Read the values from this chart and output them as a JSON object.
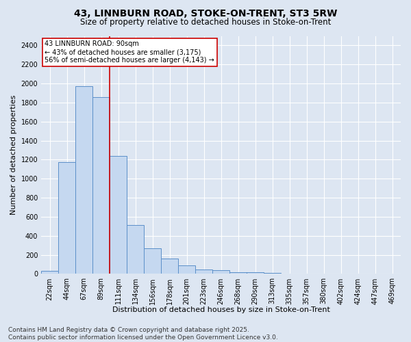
{
  "title_line1": "43, LINNBURN ROAD, STOKE-ON-TRENT, ST3 5RW",
  "title_line2": "Size of property relative to detached houses in Stoke-on-Trent",
  "xlabel": "Distribution of detached houses by size in Stoke-on-Trent",
  "ylabel": "Number of detached properties",
  "categories": [
    "22sqm",
    "44sqm",
    "67sqm",
    "89sqm",
    "111sqm",
    "134sqm",
    "156sqm",
    "178sqm",
    "201sqm",
    "223sqm",
    "246sqm",
    "268sqm",
    "290sqm",
    "313sqm",
    "335sqm",
    "357sqm",
    "380sqm",
    "402sqm",
    "424sqm",
    "447sqm",
    "469sqm"
  ],
  "values": [
    30,
    1175,
    1970,
    1855,
    1240,
    515,
    270,
    158,
    90,
    50,
    42,
    20,
    15,
    10,
    5,
    3,
    2,
    1,
    1,
    0,
    5
  ],
  "bar_color": "#c5d8f0",
  "bar_edge_color": "#5b8fc9",
  "bg_color": "#dde6f2",
  "grid_color": "#ffffff",
  "vline_color": "#cc0000",
  "annotation_text": "43 LINNBURN ROAD: 90sqm\n← 43% of detached houses are smaller (3,175)\n56% of semi-detached houses are larger (4,143) →",
  "annotation_box_color": "#ffffff",
  "annotation_box_edge": "#cc0000",
  "footer_line1": "Contains HM Land Registry data © Crown copyright and database right 2025.",
  "footer_line2": "Contains public sector information licensed under the Open Government Licence v3.0.",
  "ylim": [
    0,
    2500
  ],
  "yticks": [
    0,
    200,
    400,
    600,
    800,
    1000,
    1200,
    1400,
    1600,
    1800,
    2000,
    2200,
    2400
  ],
  "title_fontsize": 10,
  "subtitle_fontsize": 8.5,
  "axis_label_fontsize": 8,
  "tick_fontsize": 7,
  "annotation_fontsize": 7,
  "footer_fontsize": 6.5
}
